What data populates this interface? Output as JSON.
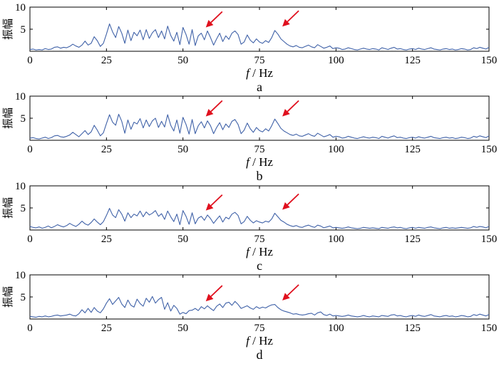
{
  "chart_data": [
    {
      "type": "line",
      "panel_label": "a",
      "xlabel_italic": "f",
      "xlabel_rest": " / Hz",
      "ylabel": "振幅",
      "xlim": [
        0,
        150
      ],
      "ylim": [
        0,
        10
      ],
      "xticks": [
        0,
        25,
        50,
        75,
        100,
        125,
        150
      ],
      "yticks": [
        5,
        10
      ],
      "series_color": "#4062a8",
      "arrow_color": "#e0101e",
      "x_start": 0,
      "x_step": 1,
      "values": [
        0.4,
        0.5,
        0.3,
        0.4,
        0.3,
        0.6,
        0.4,
        0.5,
        0.9,
        1.0,
        0.7,
        0.9,
        0.8,
        1.1,
        1.6,
        1.2,
        0.9,
        1.4,
        2.3,
        1.4,
        1.8,
        3.3,
        2.4,
        1.1,
        1.8,
        3.9,
        6.2,
        4.4,
        3.1,
        5.6,
        4.1,
        1.8,
        4.8,
        2.4,
        4.3,
        3.5,
        4.8,
        2.6,
        4.9,
        2.9,
        4.2,
        4.9,
        3.1,
        4.6,
        2.8,
        5.7,
        3.6,
        2.3,
        4.3,
        1.5,
        5.4,
        3.8,
        1.6,
        4.9,
        1.3,
        3.5,
        4.1,
        2.6,
        4.6,
        3.1,
        1.4,
        2.8,
        4.1,
        2.2,
        3.5,
        2.7,
        4.1,
        4.6,
        3.8,
        1.6,
        2.1,
        3.7,
        2.5,
        1.9,
        2.8,
        2.1,
        1.8,
        2.4,
        2.0,
        3.1,
        4.7,
        3.9,
        2.8,
        2.2,
        1.6,
        1.2,
        1.0,
        1.3,
        0.9,
        0.8,
        1.1,
        1.4,
        1.0,
        0.8,
        1.5,
        1.1,
        0.7,
        0.9,
        1.2,
        0.6,
        0.8,
        0.7,
        0.4,
        0.5,
        0.8,
        0.6,
        0.4,
        0.3,
        0.5,
        0.7,
        0.5,
        0.4,
        0.6,
        0.5,
        0.3,
        0.8,
        0.6,
        0.4,
        0.7,
        0.9,
        0.5,
        0.6,
        0.4,
        0.3,
        0.5,
        0.6,
        0.4,
        0.7,
        0.5,
        0.4,
        0.6,
        0.8,
        0.5,
        0.4,
        0.3,
        0.5,
        0.6,
        0.4,
        0.5,
        0.3,
        0.4,
        0.6,
        0.5,
        0.3,
        0.4,
        0.8,
        0.6,
        0.9,
        0.7,
        0.5,
        0.9
      ],
      "annotations": [
        {
          "x": 57,
          "y": 4.6
        },
        {
          "x": 82,
          "y": 4.8
        }
      ]
    },
    {
      "type": "line",
      "panel_label": "b",
      "xlabel_italic": "f",
      "xlabel_rest": " / Hz",
      "ylabel": "振幅",
      "xlim": [
        0,
        150
      ],
      "ylim": [
        0,
        10
      ],
      "xticks": [
        0,
        25,
        50,
        75,
        100,
        125,
        150
      ],
      "yticks": [
        5,
        10
      ],
      "series_color": "#4062a8",
      "arrow_color": "#e0101e",
      "x_start": 0,
      "x_step": 1,
      "values": [
        0.5,
        0.6,
        0.4,
        0.3,
        0.5,
        0.7,
        0.4,
        0.6,
        1.0,
        1.1,
        0.8,
        0.7,
        0.9,
        1.2,
        1.8,
        1.3,
        0.8,
        1.5,
        2.2,
        1.3,
        1.9,
        3.4,
        2.3,
        1.0,
        1.7,
        3.8,
        5.8,
        4.1,
        3.4,
        5.9,
        4.3,
        1.6,
        4.6,
        2.5,
        4.1,
        3.7,
        4.9,
        2.8,
        4.6,
        3.1,
        4.4,
        5.0,
        2.9,
        4.3,
        3.0,
        5.8,
        3.4,
        2.1,
        4.6,
        1.6,
        5.2,
        3.6,
        1.4,
        4.7,
        1.5,
        3.3,
        4.2,
        2.8,
        4.4,
        3.3,
        1.5,
        2.9,
        4.0,
        2.4,
        3.7,
        2.9,
        4.3,
        4.7,
        3.6,
        1.5,
        2.3,
        3.9,
        2.6,
        1.8,
        2.9,
        2.2,
        1.9,
        2.6,
        2.1,
        3.3,
        4.8,
        3.8,
        2.7,
        2.1,
        1.7,
        1.3,
        1.1,
        1.4,
        1.0,
        0.9,
        1.2,
        1.5,
        1.1,
        0.9,
        1.6,
        1.2,
        0.8,
        1.0,
        1.3,
        0.7,
        0.9,
        0.8,
        0.5,
        0.6,
        0.9,
        0.7,
        0.5,
        0.4,
        0.6,
        0.8,
        0.6,
        0.5,
        0.7,
        0.6,
        0.4,
        0.9,
        0.7,
        0.5,
        0.8,
        1.0,
        0.6,
        0.7,
        0.5,
        0.4,
        0.6,
        0.7,
        0.5,
        0.8,
        0.6,
        0.5,
        0.7,
        0.9,
        0.6,
        0.5,
        0.4,
        0.6,
        0.7,
        0.5,
        0.6,
        0.4,
        0.5,
        0.7,
        0.6,
        0.4,
        0.5,
        0.9,
        0.7,
        1.0,
        0.8,
        0.6,
        1.0
      ],
      "annotations": [
        {
          "x": 57,
          "y": 4.6
        },
        {
          "x": 82,
          "y": 4.6
        }
      ]
    },
    {
      "type": "line",
      "panel_label": "c",
      "xlabel_italic": "f",
      "xlabel_rest": " / Hz",
      "ylabel": "振幅",
      "xlim": [
        0,
        150
      ],
      "ylim": [
        0,
        10
      ],
      "xticks": [
        0,
        25,
        50,
        75,
        100,
        125,
        150
      ],
      "yticks": [
        5,
        10
      ],
      "series_color": "#4062a8",
      "arrow_color": "#e0101e",
      "x_start": 0,
      "x_step": 1,
      "values": [
        0.8,
        0.6,
        0.5,
        0.7,
        0.4,
        0.6,
        0.9,
        0.5,
        0.8,
        1.2,
        0.9,
        0.7,
        1.0,
        1.5,
        1.1,
        0.8,
        1.3,
        2.0,
        1.4,
        1.1,
        1.7,
        2.5,
        1.8,
        1.2,
        1.9,
        3.3,
        4.9,
        3.4,
        2.8,
        4.6,
        3.6,
        2.0,
        3.9,
        2.8,
        3.6,
        3.2,
        4.3,
        3.0,
        4.1,
        3.4,
        3.8,
        4.4,
        3.1,
        3.7,
        2.4,
        4.3,
        3.0,
        1.9,
        3.6,
        1.2,
        4.4,
        3.1,
        1.3,
        3.9,
        1.4,
        2.7,
        3.1,
        2.2,
        3.4,
        2.6,
        1.5,
        2.4,
        3.2,
        1.8,
        2.9,
        2.5,
        3.6,
        4.0,
        3.3,
        1.4,
        1.9,
        3.1,
        2.2,
        1.6,
        2.1,
        1.8,
        1.6,
        2.0,
        1.8,
        2.5,
        3.8,
        3.0,
        2.2,
        1.8,
        1.3,
        1.0,
        0.8,
        1.0,
        0.7,
        0.6,
        0.9,
        1.1,
        0.8,
        0.6,
        1.1,
        0.9,
        0.5,
        0.7,
        0.9,
        0.5,
        0.6,
        0.5,
        0.4,
        0.5,
        0.7,
        0.5,
        0.4,
        0.3,
        0.4,
        0.6,
        0.5,
        0.4,
        0.5,
        0.4,
        0.3,
        0.6,
        0.5,
        0.4,
        0.6,
        0.7,
        0.5,
        0.6,
        0.4,
        0.3,
        0.5,
        0.6,
        0.4,
        0.6,
        0.5,
        0.4,
        0.6,
        0.7,
        0.5,
        0.4,
        0.3,
        0.5,
        0.6,
        0.4,
        0.5,
        0.4,
        0.5,
        0.6,
        0.5,
        0.4,
        0.5,
        0.8,
        0.6,
        0.8,
        0.7,
        0.5,
        0.8
      ],
      "annotations": [
        {
          "x": 57,
          "y": 3.6
        },
        {
          "x": 82,
          "y": 3.8
        }
      ]
    },
    {
      "type": "line",
      "panel_label": "d",
      "xlabel_italic": "f",
      "xlabel_rest": " / Hz",
      "ylabel": "振幅",
      "xlim": [
        0,
        150
      ],
      "ylim": [
        0,
        10
      ],
      "xticks": [
        0,
        25,
        50,
        75,
        100,
        125,
        150
      ],
      "yticks": [
        5,
        10
      ],
      "series_color": "#4062a8",
      "arrow_color": "#e0101e",
      "x_start": 0,
      "x_step": 1,
      "values": [
        0.6,
        0.5,
        0.4,
        0.6,
        0.5,
        0.7,
        0.5,
        0.6,
        0.8,
        0.9,
        0.7,
        0.8,
        0.9,
        1.1,
        0.8,
        0.7,
        1.2,
        2.1,
        1.4,
        2.4,
        1.5,
        2.6,
        1.8,
        1.4,
        2.3,
        3.6,
        4.6,
        3.3,
        4.1,
        4.9,
        3.4,
        2.6,
        4.3,
        3.1,
        2.7,
        4.5,
        3.5,
        2.9,
        4.7,
        3.8,
        5.1,
        3.6,
        4.4,
        4.9,
        2.2,
        3.7,
        1.8,
        3.1,
        2.4,
        1.1,
        1.5,
        1.2,
        1.9,
        2.0,
        2.4,
        1.9,
        2.8,
        2.3,
        3.0,
        2.4,
        1.9,
        2.9,
        3.4,
        2.6,
        3.6,
        3.8,
        3.1,
        4.0,
        3.3,
        2.4,
        2.7,
        3.0,
        2.5,
        2.2,
        2.8,
        2.4,
        2.7,
        2.5,
        2.9,
        3.2,
        3.3,
        2.6,
        2.1,
        1.8,
        1.6,
        1.4,
        1.1,
        1.2,
        1.0,
        0.9,
        1.0,
        1.2,
        1.3,
        0.9,
        1.4,
        1.6,
        1.0,
        0.8,
        1.1,
        0.7,
        0.8,
        0.7,
        0.6,
        0.7,
        0.9,
        0.7,
        0.6,
        0.5,
        0.6,
        0.8,
        0.6,
        0.5,
        0.7,
        0.6,
        0.5,
        0.8,
        0.7,
        0.6,
        0.9,
        1.0,
        0.7,
        0.8,
        0.6,
        0.5,
        0.7,
        0.8,
        0.6,
        0.9,
        0.7,
        0.6,
        0.8,
        1.0,
        0.7,
        0.6,
        0.5,
        0.7,
        0.8,
        0.6,
        0.7,
        0.5,
        0.6,
        0.8,
        0.7,
        0.5,
        0.6,
        1.0,
        0.8,
        1.1,
        0.9,
        0.7,
        1.0
      ],
      "annotations": [
        {
          "x": 57,
          "y": 3.2
        },
        {
          "x": 82,
          "y": 3.4
        }
      ]
    }
  ]
}
